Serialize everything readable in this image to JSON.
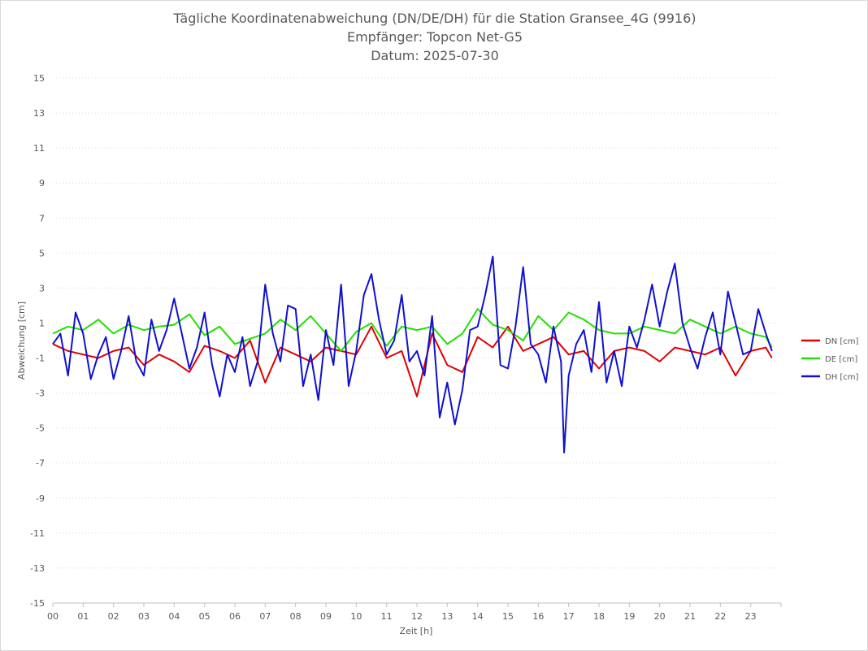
{
  "chart_data": {
    "type": "line",
    "title": "Tägliche Koordinatenabweichung (DN/DE/DH) für die Station Gransee_4G (9916)",
    "subtitle": "Empfänger: Topcon Net-G5",
    "date_line": "Datum: 2025-07-30",
    "xlabel": "Zeit [h]",
    "ylabel": "Abweichung [cm]",
    "xlim": [
      0,
      24
    ],
    "ylim": [
      -15,
      15
    ],
    "x_ticks": [
      "00",
      "01",
      "02",
      "03",
      "04",
      "05",
      "06",
      "07",
      "08",
      "09",
      "10",
      "11",
      "12",
      "13",
      "14",
      "15",
      "16",
      "17",
      "18",
      "19",
      "20",
      "21",
      "22",
      "23"
    ],
    "y_ticks": [
      "15",
      "13",
      "11",
      "9",
      "7",
      "5",
      "3",
      "1",
      "-1",
      "-3",
      "-5",
      "-7",
      "-9",
      "-11",
      "-13",
      "-15"
    ],
    "grid": true,
    "legend_position": "right",
    "series": [
      {
        "name": "DN [cm]",
        "color": "#e00000",
        "x": [
          0,
          0.5,
          1,
          1.5,
          2,
          2.5,
          3,
          3.5,
          4,
          4.5,
          5,
          5.5,
          6,
          6.5,
          7,
          7.5,
          8,
          8.5,
          9,
          9.5,
          10,
          10.5,
          11,
          11.5,
          12,
          12.5,
          13,
          13.5,
          14,
          14.5,
          15,
          15.5,
          16,
          16.5,
          17,
          17.5,
          18,
          18.5,
          19,
          19.5,
          20,
          20.5,
          21,
          21.5,
          22,
          22.5,
          23,
          23.5,
          23.7
        ],
        "values": [
          -0.2,
          -0.6,
          -0.8,
          -1.0,
          -0.6,
          -0.4,
          -1.4,
          -0.8,
          -1.2,
          -1.8,
          -0.3,
          -0.6,
          -1.0,
          0.0,
          -2.4,
          -0.4,
          -0.8,
          -1.2,
          -0.4,
          -0.6,
          -0.8,
          0.8,
          -1.0,
          -0.6,
          -3.2,
          0.4,
          -1.4,
          -1.8,
          0.2,
          -0.4,
          0.8,
          -0.6,
          -0.2,
          0.2,
          -0.8,
          -0.6,
          -1.6,
          -0.6,
          -0.4,
          -0.6,
          -1.2,
          -0.4,
          -0.6,
          -0.8,
          -0.4,
          -2.0,
          -0.6,
          -0.4,
          -1.0
        ]
      },
      {
        "name": "DE [cm]",
        "color": "#22e000",
        "x": [
          0,
          0.5,
          1,
          1.5,
          2,
          2.5,
          3,
          3.5,
          4,
          4.5,
          5,
          5.5,
          6,
          6.5,
          7,
          7.5,
          8,
          8.5,
          9,
          9.5,
          10,
          10.5,
          11,
          11.5,
          12,
          12.5,
          13,
          13.5,
          14,
          14.5,
          15,
          15.5,
          16,
          16.5,
          17,
          17.5,
          18,
          18.5,
          19,
          19.5,
          20,
          20.5,
          21,
          21.5,
          22,
          22.5,
          23,
          23.5,
          23.7
        ],
        "values": [
          0.4,
          0.8,
          0.6,
          1.2,
          0.4,
          0.9,
          0.6,
          0.8,
          0.9,
          1.5,
          0.3,
          0.8,
          -0.2,
          0.1,
          0.4,
          1.2,
          0.6,
          1.4,
          0.4,
          -0.6,
          0.5,
          1.0,
          -0.3,
          0.8,
          0.6,
          0.8,
          -0.2,
          0.4,
          1.8,
          0.9,
          0.6,
          0.0,
          1.4,
          0.6,
          1.6,
          1.2,
          0.6,
          0.4,
          0.4,
          0.8,
          0.6,
          0.4,
          1.2,
          0.8,
          0.4,
          0.8,
          0.4,
          0.2,
          -0.4
        ]
      },
      {
        "name": "DH [cm]",
        "color": "#1010d0",
        "x": [
          0,
          0.25,
          0.5,
          0.75,
          1,
          1.25,
          1.5,
          1.75,
          2,
          2.25,
          2.5,
          2.75,
          3,
          3.25,
          3.5,
          3.75,
          4,
          4.25,
          4.5,
          4.75,
          5,
          5.25,
          5.5,
          5.75,
          6,
          6.25,
          6.5,
          6.75,
          7,
          7.25,
          7.5,
          7.75,
          8,
          8.25,
          8.5,
          8.75,
          9,
          9.25,
          9.5,
          9.75,
          10,
          10.25,
          10.5,
          10.75,
          11,
          11.25,
          11.5,
          11.75,
          12,
          12.25,
          12.5,
          12.75,
          13,
          13.25,
          13.5,
          13.75,
          14,
          14.25,
          14.5,
          14.75,
          15,
          15.25,
          15.5,
          15.75,
          16,
          16.25,
          16.5,
          16.75,
          16.85,
          17,
          17.25,
          17.5,
          17.75,
          18,
          18.25,
          18.5,
          18.75,
          19,
          19.25,
          19.5,
          19.75,
          20,
          20.25,
          20.5,
          20.75,
          21,
          21.25,
          21.5,
          21.75,
          22,
          22.25,
          22.5,
          22.75,
          23,
          23.25,
          23.5,
          23.7
        ],
        "values": [
          -0.2,
          0.4,
          -2.0,
          1.6,
          0.4,
          -2.2,
          -0.8,
          0.2,
          -2.2,
          -0.6,
          1.4,
          -1.2,
          -2.0,
          1.2,
          -0.6,
          0.6,
          2.4,
          0.4,
          -1.6,
          -0.4,
          1.6,
          -1.4,
          -3.2,
          -0.8,
          -1.8,
          0.2,
          -2.6,
          -1.2,
          3.2,
          0.4,
          -1.2,
          2.0,
          1.8,
          -2.6,
          -0.8,
          -3.4,
          0.6,
          -1.4,
          3.2,
          -2.6,
          -0.6,
          2.6,
          3.8,
          1.2,
          -0.8,
          0.0,
          2.6,
          -1.2,
          -0.6,
          -2.0,
          1.4,
          -4.4,
          -2.4,
          -4.8,
          -2.8,
          0.6,
          0.8,
          2.6,
          4.8,
          -1.4,
          -1.6,
          0.8,
          4.2,
          -0.2,
          -0.8,
          -2.4,
          0.8,
          -1.2,
          -6.4,
          -2.0,
          -0.2,
          0.6,
          -1.8,
          2.2,
          -2.4,
          -0.6,
          -2.6,
          0.8,
          -0.4,
          1.2,
          3.2,
          0.8,
          2.8,
          4.4,
          1.0,
          -0.4,
          -1.6,
          0.2,
          1.6,
          -0.8,
          2.8,
          1.0,
          -0.8,
          -0.6,
          1.8,
          0.4,
          -0.6
        ]
      }
    ]
  }
}
